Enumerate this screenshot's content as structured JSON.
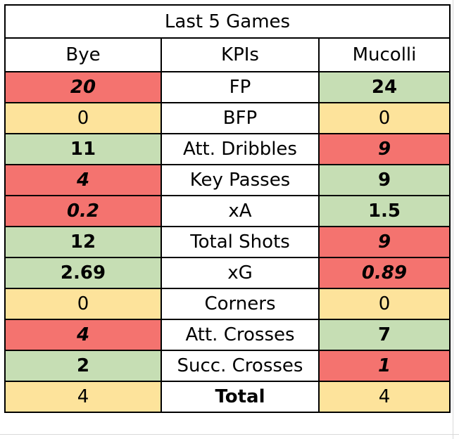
{
  "table": {
    "title": "Last 5 Games",
    "headers": [
      "Bye",
      "KPIs",
      "Mucolli"
    ],
    "rows": [
      {
        "kpi": "FP",
        "left": "20",
        "left_status": "red",
        "right": "24",
        "right_status": "green"
      },
      {
        "kpi": "BFP",
        "left": "0",
        "left_status": "yellow",
        "right": "0",
        "right_status": "yellow"
      },
      {
        "kpi": "Att. Dribbles",
        "left": "11",
        "left_status": "green",
        "right": "9",
        "right_status": "red"
      },
      {
        "kpi": "Key Passes",
        "left": "4",
        "left_status": "red",
        "right": "9",
        "right_status": "green"
      },
      {
        "kpi": "xA",
        "left": "0.2",
        "left_status": "red",
        "right": "1.5",
        "right_status": "green"
      },
      {
        "kpi": "Total Shots",
        "left": "12",
        "left_status": "green",
        "right": "9",
        "right_status": "red"
      },
      {
        "kpi": "xG",
        "left": "2.69",
        "left_status": "green",
        "right": "0.89",
        "right_status": "red"
      },
      {
        "kpi": "Corners",
        "left": "0",
        "left_status": "yellow",
        "right": "0",
        "right_status": "yellow"
      },
      {
        "kpi": "Att. Crosses",
        "left": "4",
        "left_status": "red",
        "right": "7",
        "right_status": "green"
      },
      {
        "kpi": "Succ. Crosses",
        "left": "2",
        "left_status": "green",
        "right": "1",
        "right_status": "red"
      }
    ],
    "total": {
      "kpi": "Total",
      "left": "4",
      "left_status": "yellow",
      "right": "4",
      "right_status": "yellow"
    }
  },
  "colors": {
    "red_fill": "#f4736f",
    "green_fill": "#c6deb4",
    "yellow_fill": "#fde39b",
    "red_text": "#9c0006",
    "green_text": "#3a5a1f",
    "border": "#000000"
  }
}
